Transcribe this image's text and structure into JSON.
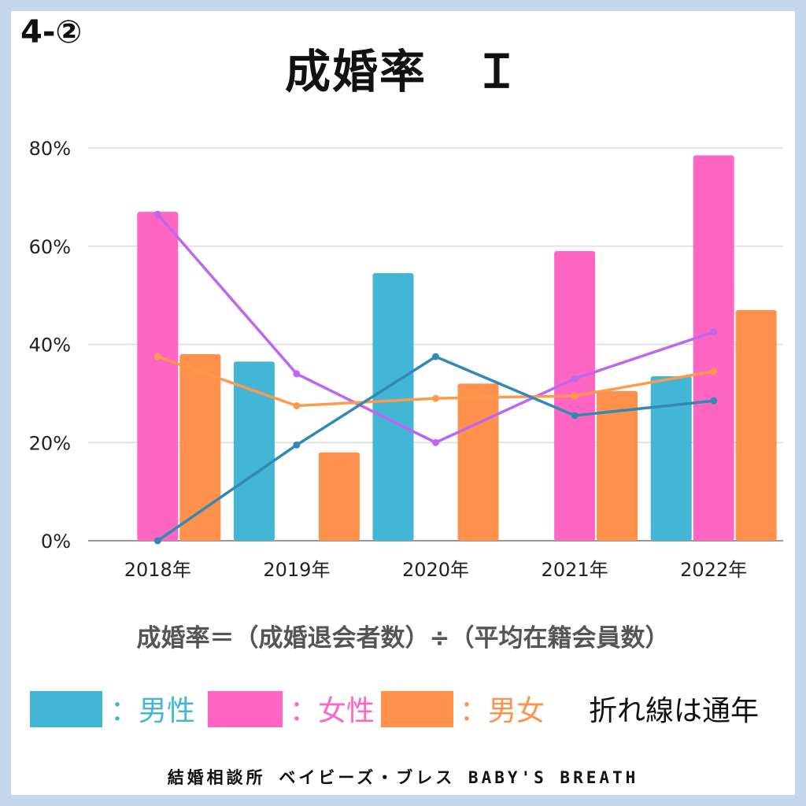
{
  "header": {
    "section_number": "4-②",
    "title": "成婚率　Ｉ"
  },
  "formula": "成婚率＝（成婚退会者数）÷（平均在籍会員数）",
  "legend": {
    "male": "：男性",
    "female": "：女性",
    "both": "：男女",
    "note": "折れ線は通年"
  },
  "footer": "結婚相談所 ベイビーズ・ブレス BABY'S BREATH",
  "colors": {
    "male": "#42b6d4",
    "female": "#ff66c4",
    "both": "#ff914d",
    "male_line": "#3389b5",
    "female_line": "#bf66ee",
    "both_line": "#ff9a4d",
    "grid": "#dddddd",
    "axis": "#999999"
  },
  "chart_data": {
    "type": "bar",
    "categories": [
      "2018年",
      "2019年",
      "2020年",
      "2021年",
      "2022年"
    ],
    "ylim": [
      0,
      80
    ],
    "yticks": [
      "0%",
      "20%",
      "40%",
      "60%",
      "80%"
    ],
    "ytick_values": [
      0,
      20,
      40,
      60,
      80
    ],
    "grid": true,
    "series": [
      {
        "name": "男性",
        "key": "male",
        "values": [
          null,
          36.5,
          54.5,
          null,
          33.5
        ]
      },
      {
        "name": "女性",
        "key": "female",
        "values": [
          67,
          null,
          null,
          59,
          78.5
        ]
      },
      {
        "name": "男女",
        "key": "both",
        "values": [
          38,
          18,
          32,
          30.5,
          47
        ]
      }
    ],
    "lines": [
      {
        "key": "female_line",
        "values": [
          66.5,
          34,
          20,
          33,
          42.5
        ]
      },
      {
        "key": "both_line",
        "values": [
          37.5,
          27.5,
          29,
          29.5,
          34.5
        ]
      },
      {
        "key": "male_line",
        "values": [
          0,
          19.5,
          37.5,
          25.5,
          28.5
        ]
      }
    ]
  }
}
